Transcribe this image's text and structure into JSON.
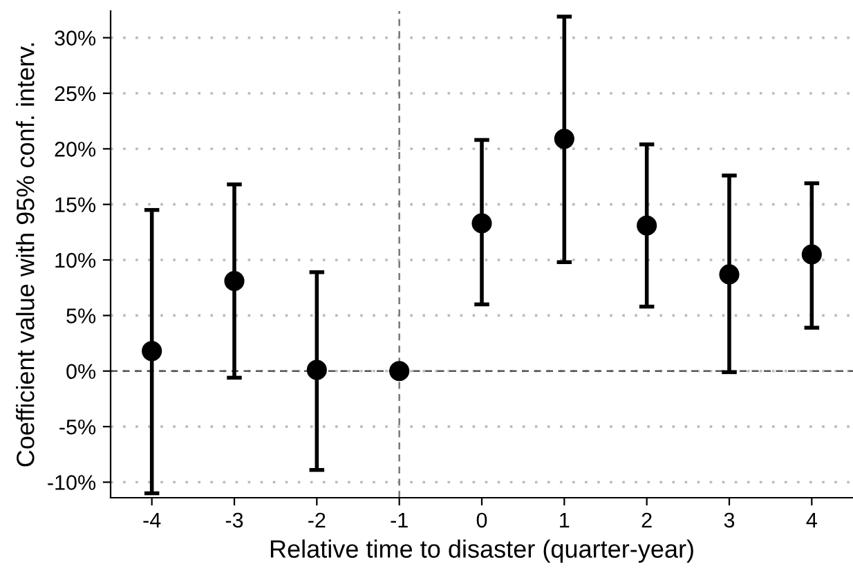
{
  "chart_data": {
    "type": "scatter",
    "xlabel": "Relative time to disaster (quarter-year)",
    "ylabel": "Coefficient value with 95% conf. interv.",
    "x": [
      -4,
      -3,
      -2,
      -1,
      0,
      1,
      2,
      3,
      4
    ],
    "series": [
      {
        "color": "#000000",
        "values": [
          1.8,
          8.1,
          0.1,
          0.0,
          13.3,
          20.9,
          13.1,
          8.7,
          10.5
        ],
        "errors": [
          [
            -11.0,
            14.5
          ],
          [
            -0.6,
            16.8
          ],
          [
            -8.9,
            8.9
          ],
          null,
          [
            6.0,
            20.8
          ],
          [
            9.8,
            31.9
          ],
          [
            5.8,
            20.4
          ],
          [
            -0.1,
            17.6
          ],
          [
            3.9,
            16.9
          ]
        ]
      }
    ],
    "marker": "circle",
    "xlim": [
      -4.5,
      4.5
    ],
    "xticks": [
      -4,
      -3,
      -2,
      -1,
      0,
      1,
      2,
      3,
      4
    ],
    "ylim": [
      -11.4,
      32.4
    ],
    "yticks": [
      {
        "value": -10,
        "label": "-10%"
      },
      {
        "value": -5,
        "label": "-5%"
      },
      {
        "value": 0,
        "label": "0%"
      },
      {
        "value": 5,
        "label": "5%"
      },
      {
        "value": 10,
        "label": "10%"
      },
      {
        "value": 15,
        "label": "15%"
      },
      {
        "value": 20,
        "label": "20%"
      },
      {
        "value": 25,
        "label": "25%"
      },
      {
        "value": 30,
        "label": "30%"
      }
    ],
    "grid": "y",
    "ref_lines": [
      {
        "axis": "y",
        "value": 0,
        "line_style": "dashed",
        "color": "#555555"
      },
      {
        "axis": "x",
        "value": -1,
        "line_style": "dashed",
        "color": "#777777"
      }
    ]
  }
}
